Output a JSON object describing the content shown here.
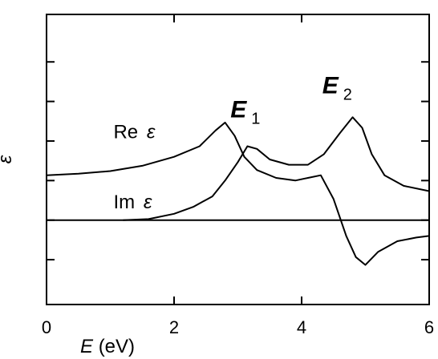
{
  "chart_data": {
    "type": "line",
    "title": "",
    "xlabel": {
      "symbol": "E",
      "unit": "(eV)"
    },
    "ylabel": "ε",
    "xlim": [
      0,
      6
    ],
    "ylim": [
      -1.6,
      3.9
    ],
    "x_ticks": [
      0,
      2,
      4,
      6
    ],
    "y_ticks": [
      -0.75,
      0,
      0.75,
      1.5,
      2.25,
      3.0
    ],
    "grid": false,
    "series": [
      {
        "name": "Re ε",
        "label_parts": {
          "prefix": "Re",
          "symbol": "ε"
        },
        "color": "#000000",
        "points": [
          [
            0.0,
            0.85
          ],
          [
            0.5,
            0.88
          ],
          [
            1.0,
            0.93
          ],
          [
            1.5,
            1.03
          ],
          [
            2.0,
            1.2
          ],
          [
            2.4,
            1.4
          ],
          [
            2.65,
            1.7
          ],
          [
            2.8,
            1.85
          ],
          [
            2.95,
            1.6
          ],
          [
            3.1,
            1.2
          ],
          [
            3.3,
            0.95
          ],
          [
            3.6,
            0.8
          ],
          [
            3.9,
            0.75
          ],
          [
            4.1,
            0.8
          ],
          [
            4.3,
            0.85
          ],
          [
            4.5,
            0.4
          ],
          [
            4.7,
            -0.3
          ],
          [
            4.85,
            -0.7
          ],
          [
            5.0,
            -0.85
          ],
          [
            5.2,
            -0.6
          ],
          [
            5.5,
            -0.4
          ],
          [
            5.8,
            -0.33
          ],
          [
            6.0,
            -0.3
          ]
        ]
      },
      {
        "name": "Im ε",
        "label_parts": {
          "prefix": "Im",
          "symbol": "ε"
        },
        "color": "#000000",
        "points": [
          [
            1.2,
            0.0
          ],
          [
            1.6,
            0.02
          ],
          [
            2.0,
            0.12
          ],
          [
            2.3,
            0.25
          ],
          [
            2.6,
            0.45
          ],
          [
            2.8,
            0.75
          ],
          [
            3.0,
            1.1
          ],
          [
            3.15,
            1.4
          ],
          [
            3.3,
            1.35
          ],
          [
            3.5,
            1.15
          ],
          [
            3.8,
            1.05
          ],
          [
            4.1,
            1.05
          ],
          [
            4.35,
            1.25
          ],
          [
            4.6,
            1.65
          ],
          [
            4.8,
            1.95
          ],
          [
            4.95,
            1.75
          ],
          [
            5.1,
            1.25
          ],
          [
            5.3,
            0.85
          ],
          [
            5.6,
            0.65
          ],
          [
            6.0,
            0.55
          ]
        ]
      },
      {
        "name": "",
        "color": "#000000",
        "points": [
          [
            0.0,
            0.0
          ],
          [
            6.0,
            0.0
          ]
        ]
      }
    ],
    "annotations": [
      {
        "main": "E",
        "sub": "1",
        "x": 3.45,
        "y": 1.95
      },
      {
        "main": "E",
        "sub": "2",
        "x": 4.6,
        "y": 2.4
      }
    ]
  }
}
